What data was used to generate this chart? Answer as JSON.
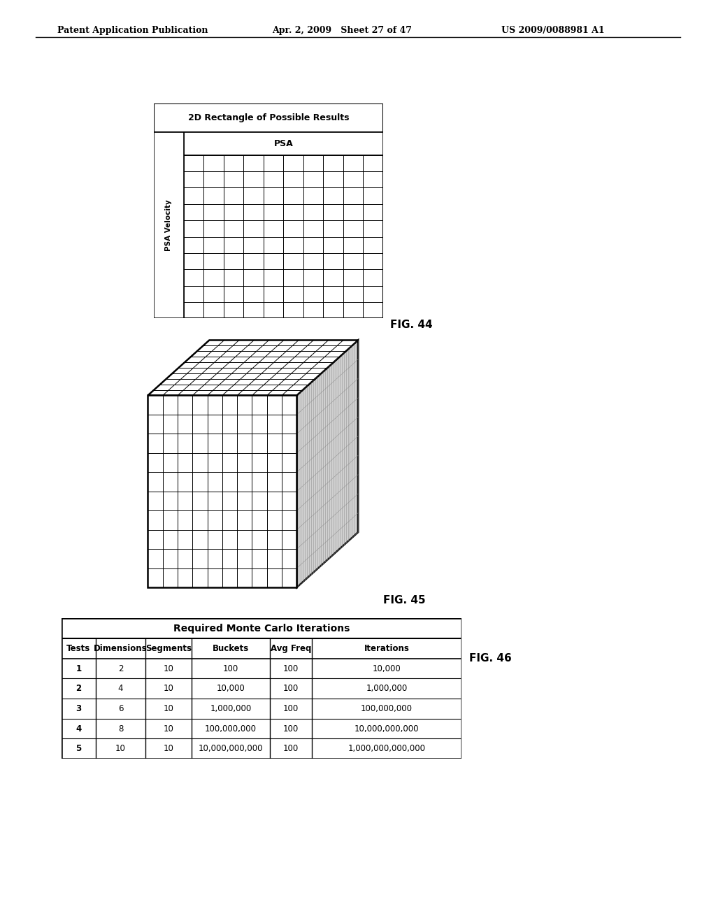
{
  "header_left": "Patent Application Publication",
  "header_mid": "Apr. 2, 2009   Sheet 27 of 47",
  "header_right": "US 2009/0088981 A1",
  "fig44_title": "2D Rectangle of Possible Results",
  "fig44_xlabel": "PSA",
  "fig44_ylabel": "PSA Velocity",
  "fig44_grid_rows": 10,
  "fig44_grid_cols": 10,
  "fig44_label": "FIG. 44",
  "fig45_label": "FIG. 45",
  "fig45_grid": 10,
  "fig46_label": "FIG. 46",
  "table_title": "Required Monte Carlo Iterations",
  "table_headers": [
    "Tests",
    "Dimensions",
    "Segments",
    "Buckets",
    "Avg Freq",
    "Iterations"
  ],
  "table_rows": [
    [
      "1",
      "2",
      "10",
      "100",
      "100",
      "10,000"
    ],
    [
      "2",
      "4",
      "10",
      "10,000",
      "100",
      "1,000,000"
    ],
    [
      "3",
      "6",
      "10",
      "1,000,000",
      "100",
      "100,000,000"
    ],
    [
      "4",
      "8",
      "10",
      "100,000,000",
      "100",
      "10,000,000,000"
    ],
    [
      "5",
      "10",
      "10",
      "10,000,000,000",
      "100",
      "1,000,000,000,000"
    ]
  ],
  "bg_color": "#ffffff",
  "line_color": "#000000"
}
